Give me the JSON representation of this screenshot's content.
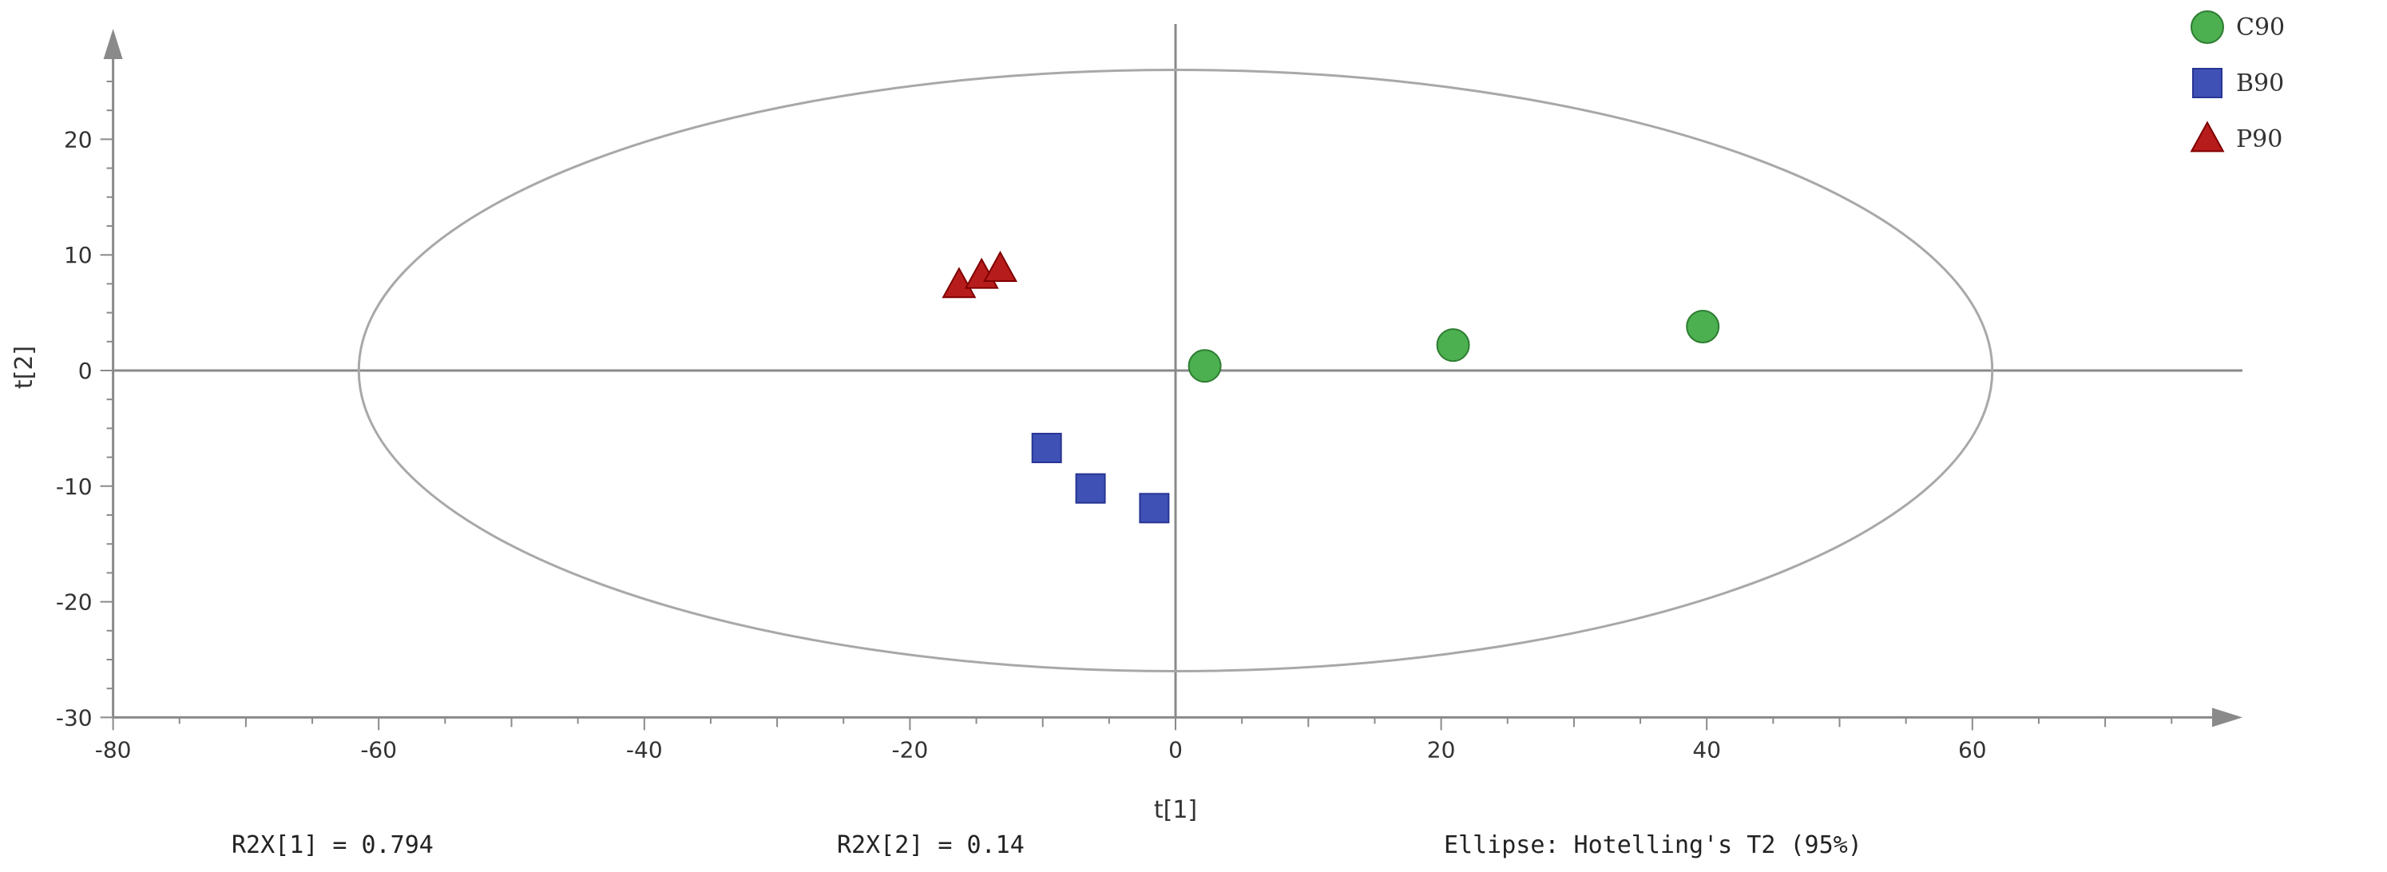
{
  "chart_data": {
    "type": "scatter",
    "xlabel": "t[1]",
    "ylabel": "t[2]",
    "xlim": [
      -80,
      80
    ],
    "ylim": [
      -30,
      30
    ],
    "x_ticks": [
      -80,
      -60,
      -40,
      -20,
      0,
      20,
      40,
      60
    ],
    "y_ticks": [
      -30,
      -20,
      -10,
      0,
      10,
      20
    ],
    "ellipse": {
      "label": "Ellipse: Hotelling's T2 (95%)",
      "rx": 61.5,
      "ry": 26
    },
    "legend_position": "top-right",
    "series": [
      {
        "name": "C90",
        "marker": "circle",
        "color": "#4caf50",
        "points": [
          [
            2.2,
            0.4
          ],
          [
            20.9,
            2.2
          ],
          [
            39.7,
            3.8
          ]
        ]
      },
      {
        "name": "B90",
        "marker": "square",
        "color": "#3f51b5",
        "points": [
          [
            -9.7,
            -6.7
          ],
          [
            -6.4,
            -10.2
          ],
          [
            -1.6,
            -11.9
          ]
        ]
      },
      {
        "name": "P90",
        "marker": "triangle",
        "color": "#b71c1c",
        "points": [
          [
            -16.3,
            7.4
          ],
          [
            -14.6,
            8.2
          ],
          [
            -13.2,
            8.8
          ]
        ]
      }
    ],
    "annotations": {
      "r2x1": "R2X[1] = 0.794",
      "r2x2": "R2X[2] = 0.14"
    }
  }
}
